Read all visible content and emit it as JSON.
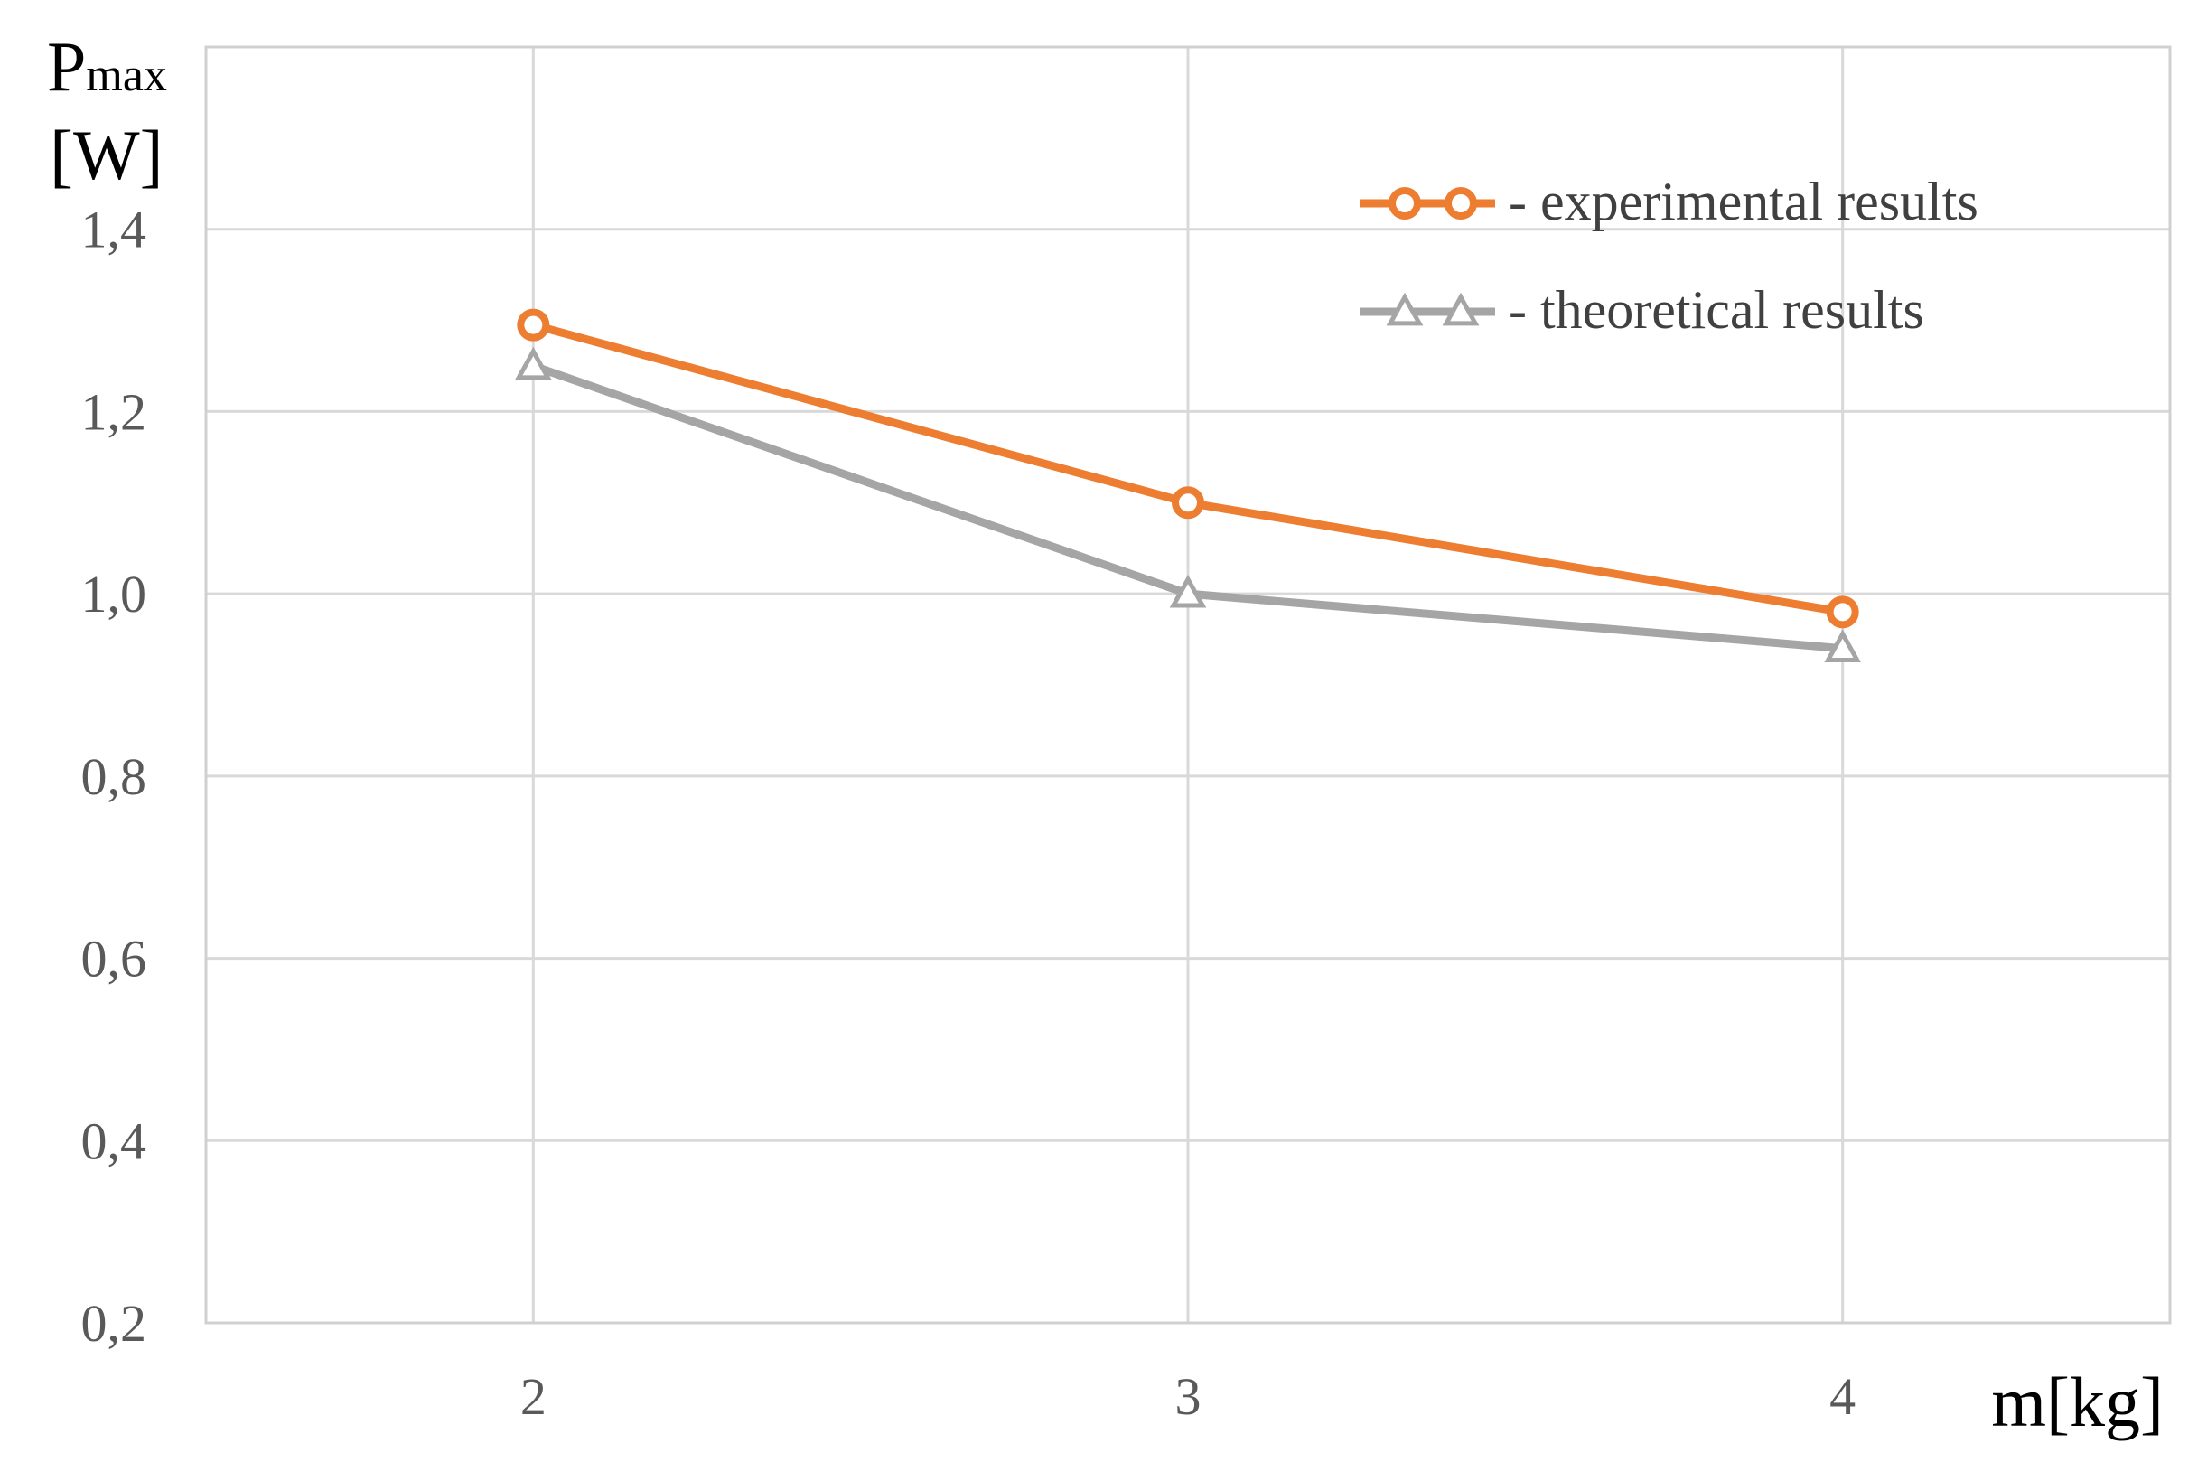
{
  "chart_data": {
    "type": "line",
    "ylabel": {
      "symbol": "P",
      "subscript": "max",
      "unit": "[W]"
    },
    "xlabel": "m[kg]",
    "x": [
      2,
      3,
      4
    ],
    "xtick_labels": [
      "2",
      "3",
      "4"
    ],
    "xlim": [
      1.5,
      4.5
    ],
    "ylim": [
      0.2,
      1.6
    ],
    "ytick_values": [
      0.2,
      0.4,
      0.6,
      0.8,
      1.0,
      1.2,
      1.4
    ],
    "ytick_labels": [
      "0,2",
      "0,4",
      "0,6",
      "0,8",
      "1,0",
      "1,2",
      "1,4"
    ],
    "grid": true,
    "legend_position": "top-right",
    "series": [
      {
        "name": "experimental results",
        "legend_label": "- experimental results",
        "marker": "circle",
        "color": "#ED7D31",
        "values": [
          1.295,
          1.1,
          0.98
        ]
      },
      {
        "name": "theoretical results",
        "legend_label": "- theoretical results",
        "marker": "triangle",
        "color": "#A5A5A5",
        "values": [
          1.25,
          1.0,
          0.94
        ]
      }
    ]
  }
}
